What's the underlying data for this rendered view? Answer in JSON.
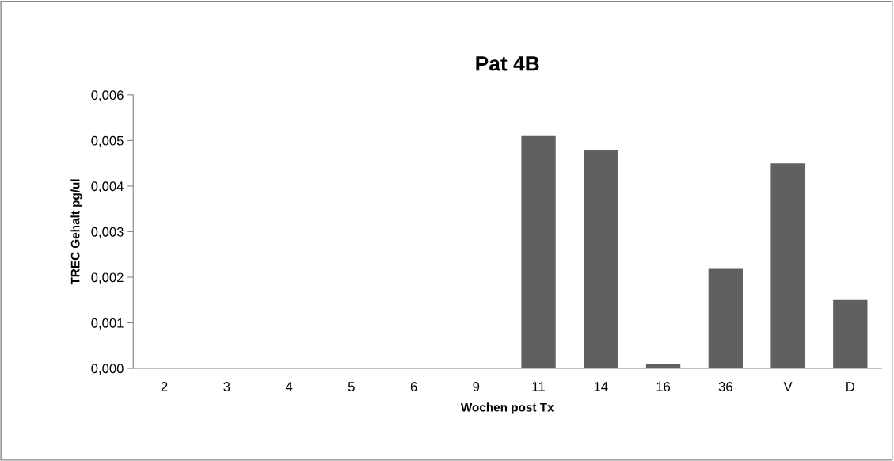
{
  "chart_data": {
    "type": "bar",
    "title": "Pat 4B",
    "xlabel": "Wochen post Tx",
    "ylabel": "TREC Gehalt pg/ul",
    "categories": [
      "2",
      "3",
      "4",
      "5",
      "6",
      "9",
      "11",
      "14",
      "16",
      "36",
      "V",
      "D"
    ],
    "values": [
      0,
      0,
      0,
      0,
      0,
      0,
      0.0051,
      0.0048,
      0.0001,
      0.0022,
      0.0045,
      0.0015
    ],
    "color": "#606060",
    "ylim": [
      0,
      0.006
    ],
    "yticks": [
      {
        "value": 0,
        "label": "0,000"
      },
      {
        "value": 0.001,
        "label": "0,001"
      },
      {
        "value": 0.002,
        "label": "0,002"
      },
      {
        "value": 0.003,
        "label": "0,003"
      },
      {
        "value": 0.004,
        "label": "0,004"
      },
      {
        "value": 0.005,
        "label": "0,005"
      },
      {
        "value": 0.006,
        "label": "0,006"
      }
    ],
    "grid": false
  }
}
